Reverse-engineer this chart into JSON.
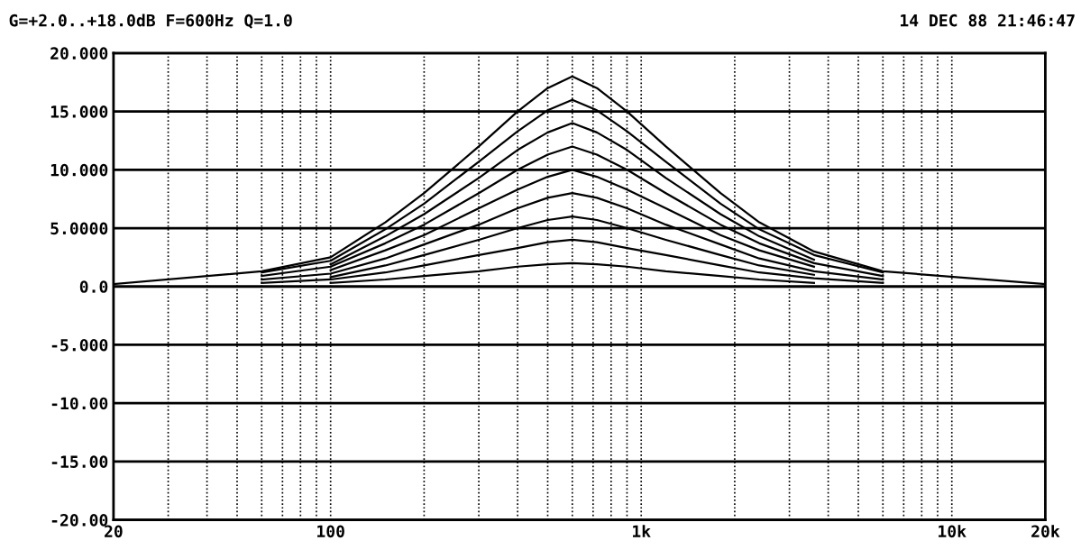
{
  "chart_data": {
    "type": "line",
    "title": "G=+2.0..+18.0dB F=600Hz Q=1.0",
    "annotations": [
      "14 DEC 88 21:46:47"
    ],
    "x": [
      20,
      60,
      100,
      150,
      200,
      300,
      400,
      500,
      600,
      720,
      900,
      1200,
      1800,
      2400,
      3600,
      6000,
      20000
    ],
    "series": [
      {
        "color": "#000000",
        "values": [
          null,
          null,
          0.3,
          0.6,
          0.9,
          1.3,
          1.7,
          1.9,
          2,
          1.9,
          1.7,
          1.3,
          0.9,
          0.6,
          0.3,
          null,
          null
        ]
      },
      {
        "color": "#000000",
        "values": [
          null,
          0.3,
          0.6,
          1.2,
          1.8,
          2.7,
          3.3,
          3.8,
          4,
          3.8,
          3.3,
          2.7,
          1.8,
          1.2,
          0.7,
          0.3,
          null
        ]
      },
      {
        "color": "#000000",
        "values": [
          null,
          null,
          0.8,
          1.8,
          2.7,
          4,
          5,
          5.7,
          6,
          5.7,
          5,
          4,
          2.7,
          1.8,
          1,
          null,
          null
        ]
      },
      {
        "color": "#000000",
        "values": [
          null,
          0.6,
          1.1,
          2.4,
          3.6,
          5.3,
          6.7,
          7.6,
          8,
          7.6,
          6.7,
          5.3,
          3.6,
          2.4,
          1.3,
          0.6,
          null
        ]
      },
      {
        "color": "#000000",
        "values": [
          null,
          null,
          1.4,
          3.1,
          4.4,
          6.7,
          8.3,
          9.4,
          10,
          9.4,
          8.3,
          6.7,
          4.4,
          3.1,
          1.7,
          null,
          null
        ]
      },
      {
        "color": "#000000",
        "values": [
          null,
          0.9,
          1.7,
          3.7,
          5.3,
          8,
          10,
          11.3,
          12,
          11.3,
          10,
          8,
          5.3,
          3.7,
          2,
          0.9,
          null
        ]
      },
      {
        "color": "#000000",
        "values": [
          null,
          null,
          1.9,
          4.3,
          6.2,
          9.3,
          11.7,
          13.2,
          14,
          13.2,
          11.7,
          9.3,
          6.2,
          4.3,
          2.3,
          null,
          null
        ]
      },
      {
        "color": "#000000",
        "values": [
          null,
          1.2,
          2.2,
          4.9,
          7.1,
          10.7,
          13.3,
          15.1,
          16,
          15.1,
          13.3,
          10.7,
          7.1,
          4.9,
          2.7,
          1.2,
          null
        ]
      },
      {
        "color": "#000000",
        "values": [
          0.2,
          1.3,
          2.5,
          5.5,
          8,
          12,
          15,
          17,
          18,
          17,
          15,
          12,
          8,
          5.5,
          3,
          1.3,
          0.2
        ]
      }
    ],
    "log": "x",
    "xlim": [
      20,
      20000
    ],
    "xticks": [
      20,
      {
        "value": 30,
        "label": null
      },
      {
        "value": 40,
        "label": null
      },
      {
        "value": 50,
        "label": null
      },
      {
        "value": 60,
        "label": null
      },
      {
        "value": 70,
        "label": null
      },
      {
        "value": 80,
        "label": null
      },
      {
        "value": 90,
        "label": null
      },
      100,
      {
        "value": 200,
        "label": null
      },
      {
        "value": 300,
        "label": null
      },
      {
        "value": 400,
        "label": null
      },
      {
        "value": 500,
        "label": null
      },
      {
        "value": 600,
        "label": null
      },
      {
        "value": 700,
        "label": null
      },
      {
        "value": 800,
        "label": null
      },
      {
        "value": 900,
        "label": null
      },
      {
        "value": 1000,
        "label": "1k"
      },
      {
        "value": 2000,
        "label": null
      },
      {
        "value": 3000,
        "label": null
      },
      {
        "value": 4000,
        "label": null
      },
      {
        "value": 5000,
        "label": null
      },
      {
        "value": 6000,
        "label": null
      },
      {
        "value": 7000,
        "label": null
      },
      {
        "value": 8000,
        "label": null
      },
      {
        "value": 9000,
        "label": null
      },
      {
        "value": 10000,
        "label": "10k"
      },
      {
        "value": 20000,
        "label": "20k"
      }
    ],
    "ylim": [
      -20,
      20
    ],
    "yticks": [
      {
        "value": -20,
        "label": "-20.00"
      },
      {
        "value": -15,
        "label": "-15.00"
      },
      {
        "value": -10,
        "label": "-10.00"
      },
      {
        "value": -5,
        "label": "-5.000"
      },
      {
        "value": 0,
        "label": "0.0"
      },
      {
        "value": 5,
        "label": "5.0000"
      },
      {
        "value": 10,
        "label": "10.000"
      },
      {
        "value": 15,
        "label": "15.000"
      },
      {
        "value": 20,
        "label": "20.000"
      }
    ],
    "grid": true,
    "line_style": "solid"
  }
}
